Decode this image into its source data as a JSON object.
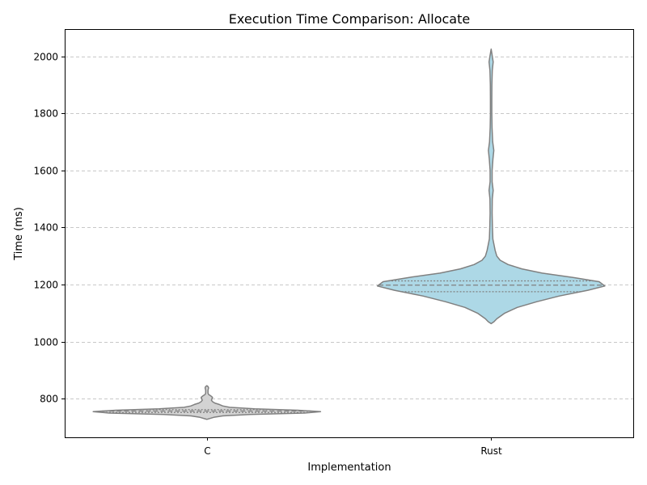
{
  "chart_data": {
    "type": "violin",
    "title": "Execution Time Comparison: Allocate",
    "xlabel": "Implementation",
    "ylabel": "Time (ms)",
    "categories": [
      "C",
      "Rust"
    ],
    "ylim": [
      665,
      2095
    ],
    "yticks": [
      800,
      1000,
      1200,
      1400,
      1600,
      1800,
      2000
    ],
    "grid": "y-dashed",
    "colors": {
      "C": "#d3d3d3",
      "Rust": "#add8e6",
      "outline": "#808080",
      "grid": "#c8c8c8"
    },
    "violins": [
      {
        "category": "C",
        "quartiles": [
          752,
          757,
          762
        ],
        "profile": [
          [
            728,
            0.0
          ],
          [
            735,
            0.06
          ],
          [
            740,
            0.14
          ],
          [
            745,
            0.38
          ],
          [
            750,
            0.86
          ],
          [
            755,
            1.0
          ],
          [
            760,
            0.8
          ],
          [
            765,
            0.42
          ],
          [
            770,
            0.2
          ],
          [
            775,
            0.14
          ],
          [
            780,
            0.11
          ],
          [
            785,
            0.07
          ],
          [
            790,
            0.05
          ],
          [
            795,
            0.04
          ],
          [
            800,
            0.045
          ],
          [
            805,
            0.05
          ],
          [
            810,
            0.035
          ],
          [
            815,
            0.015
          ],
          [
            820,
            0.01
          ],
          [
            830,
            0.01
          ],
          [
            838,
            0.015
          ],
          [
            842,
            0.012
          ],
          [
            846,
            0.0
          ]
        ]
      },
      {
        "category": "Rust",
        "quartiles": [
          1175,
          1198,
          1213
        ],
        "profile": [
          [
            1063,
            0.0
          ],
          [
            1070,
            0.025
          ],
          [
            1080,
            0.05
          ],
          [
            1100,
            0.12
          ],
          [
            1120,
            0.23
          ],
          [
            1140,
            0.4
          ],
          [
            1160,
            0.6
          ],
          [
            1180,
            0.85
          ],
          [
            1195,
            1.0
          ],
          [
            1210,
            0.95
          ],
          [
            1225,
            0.72
          ],
          [
            1240,
            0.45
          ],
          [
            1255,
            0.27
          ],
          [
            1270,
            0.15
          ],
          [
            1285,
            0.08
          ],
          [
            1300,
            0.05
          ],
          [
            1320,
            0.035
          ],
          [
            1340,
            0.025
          ],
          [
            1360,
            0.015
          ],
          [
            1400,
            0.012
          ],
          [
            1450,
            0.009
          ],
          [
            1500,
            0.01
          ],
          [
            1530,
            0.018
          ],
          [
            1560,
            0.009
          ],
          [
            1600,
            0.009
          ],
          [
            1640,
            0.016
          ],
          [
            1670,
            0.024
          ],
          [
            1700,
            0.014
          ],
          [
            1750,
            0.008
          ],
          [
            1800,
            0.006
          ],
          [
            1850,
            0.006
          ],
          [
            1900,
            0.007
          ],
          [
            1950,
            0.01
          ],
          [
            1980,
            0.018
          ],
          [
            2000,
            0.01
          ],
          [
            2025,
            0.0
          ]
        ]
      }
    ]
  }
}
